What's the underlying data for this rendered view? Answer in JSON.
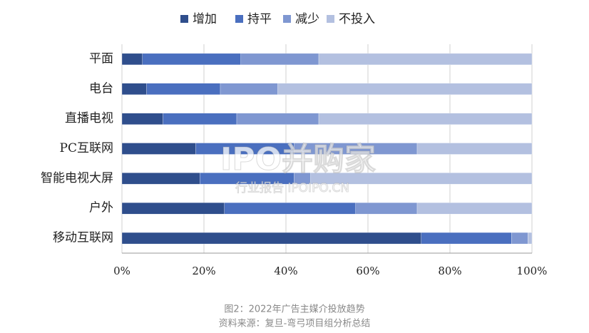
{
  "chart_data": {
    "type": "bar",
    "orientation": "horizontal",
    "stacked": true,
    "categories": [
      "平面",
      "电台",
      "直播电视",
      "PC互联网",
      "智能电视大屏",
      "户外",
      "移动互联网"
    ],
    "series": [
      {
        "name": "增加",
        "color": "#2f4e8c",
        "values": [
          5,
          6,
          10,
          18,
          19,
          25,
          73
        ]
      },
      {
        "name": "持平",
        "color": "#4a6fbf",
        "values": [
          24,
          18,
          18,
          24,
          23,
          32,
          22
        ]
      },
      {
        "name": "减少",
        "color": "#7f97d1",
        "values": [
          19,
          14,
          20,
          30,
          4,
          15,
          4
        ]
      },
      {
        "name": "不投入",
        "color": "#b3c0e0",
        "values": [
          52,
          62,
          52,
          28,
          54,
          28,
          1
        ]
      }
    ],
    "xlim": [
      0,
      100
    ],
    "xticks": [
      {
        "value": 0,
        "label": "0%"
      },
      {
        "value": 20,
        "label": "20%"
      },
      {
        "value": 40,
        "label": "40%"
      },
      {
        "value": 60,
        "label": "60%"
      },
      {
        "value": 80,
        "label": "80%"
      },
      {
        "value": 100,
        "label": "100%"
      }
    ],
    "grid": true,
    "legend": "top",
    "caption": "图2：2022年广告主媒介投放趋势",
    "source": "资料来源：复旦-弯弓项目组分析总结",
    "watermark": [
      "IPO并购家",
      "行业报告 IPOIPO.CN"
    ]
  }
}
